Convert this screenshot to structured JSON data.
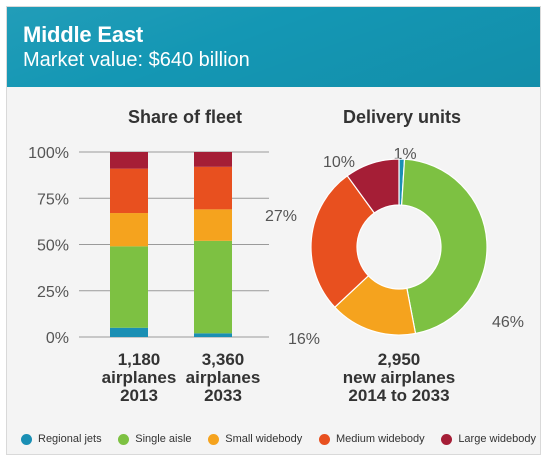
{
  "header": {
    "title": "Middle East",
    "subtitle": "Market value: $640 billion"
  },
  "legend": [
    {
      "label": "Regional jets",
      "color": "#1a8fb4"
    },
    {
      "label": "Single aisle",
      "color": "#7dc142"
    },
    {
      "label": "Small widebody",
      "color": "#f5a31e"
    },
    {
      "label": "Medium widebody",
      "color": "#e8501f"
    },
    {
      "label": "Large widebody",
      "color": "#a51e36"
    }
  ],
  "chart_data": [
    {
      "type": "bar",
      "stacked": true,
      "title": "Share of fleet",
      "ylim": [
        0,
        100
      ],
      "yticks": [
        "0%",
        "25%",
        "50%",
        "75%",
        "100%"
      ],
      "grid": true,
      "categories": [
        "1,180\nairplanes\n2013",
        "3,360\nairplanes\n2033"
      ],
      "category_labels": [
        {
          "line1": "1,180",
          "line2": "airplanes",
          "line3": "2013"
        },
        {
          "line1": "3,360",
          "line2": "airplanes",
          "line3": "2033"
        }
      ],
      "series": [
        {
          "name": "Regional jets",
          "color": "#1a8fb4",
          "values": [
            5,
            2
          ]
        },
        {
          "name": "Single aisle",
          "color": "#7dc142",
          "values": [
            44,
            50
          ]
        },
        {
          "name": "Small widebody",
          "color": "#f5a31e",
          "values": [
            18,
            17
          ]
        },
        {
          "name": "Medium widebody",
          "color": "#e8501f",
          "values": [
            24,
            23
          ]
        },
        {
          "name": "Large widebody",
          "color": "#a51e36",
          "values": [
            9,
            8
          ]
        }
      ]
    },
    {
      "type": "pie",
      "donut": true,
      "title": "Delivery units",
      "slices": [
        {
          "name": "Regional jets",
          "color": "#1a8fb4",
          "value": 1,
          "label": "1%"
        },
        {
          "name": "Single aisle",
          "color": "#7dc142",
          "value": 46,
          "label": "46%"
        },
        {
          "name": "Small widebody",
          "color": "#f5a31e",
          "value": 16,
          "label": "16%"
        },
        {
          "name": "Medium widebody",
          "color": "#e8501f",
          "value": 27,
          "label": "27%"
        },
        {
          "name": "Large widebody",
          "color": "#a51e36",
          "value": 10,
          "label": "10%"
        }
      ],
      "caption": {
        "line1": "2,950",
        "line2": "new airplanes",
        "line3": "2014 to 2033"
      }
    }
  ]
}
